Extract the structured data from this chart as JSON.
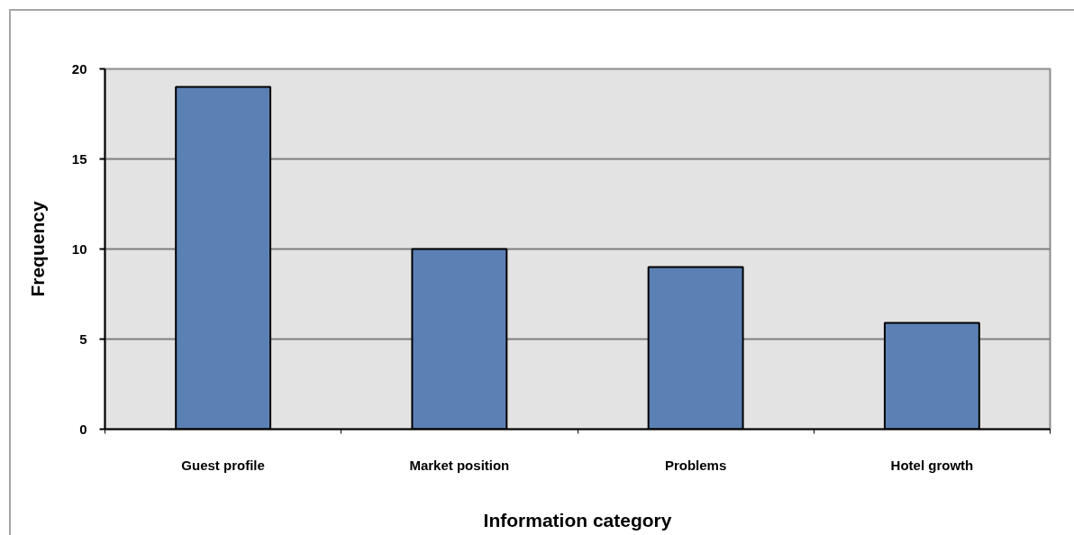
{
  "chart_data": {
    "type": "bar",
    "xlabel": "Information category",
    "ylabel": "Frequency",
    "categories": [
      "Guest profile",
      "Market position",
      "Problems",
      "Hotel growth"
    ],
    "values": [
      19,
      10,
      9,
      5.9
    ],
    "color": "#5b80b4",
    "ylim": [
      0,
      20
    ],
    "yticks": [
      0,
      5,
      10,
      15,
      20
    ],
    "grid": "y"
  }
}
